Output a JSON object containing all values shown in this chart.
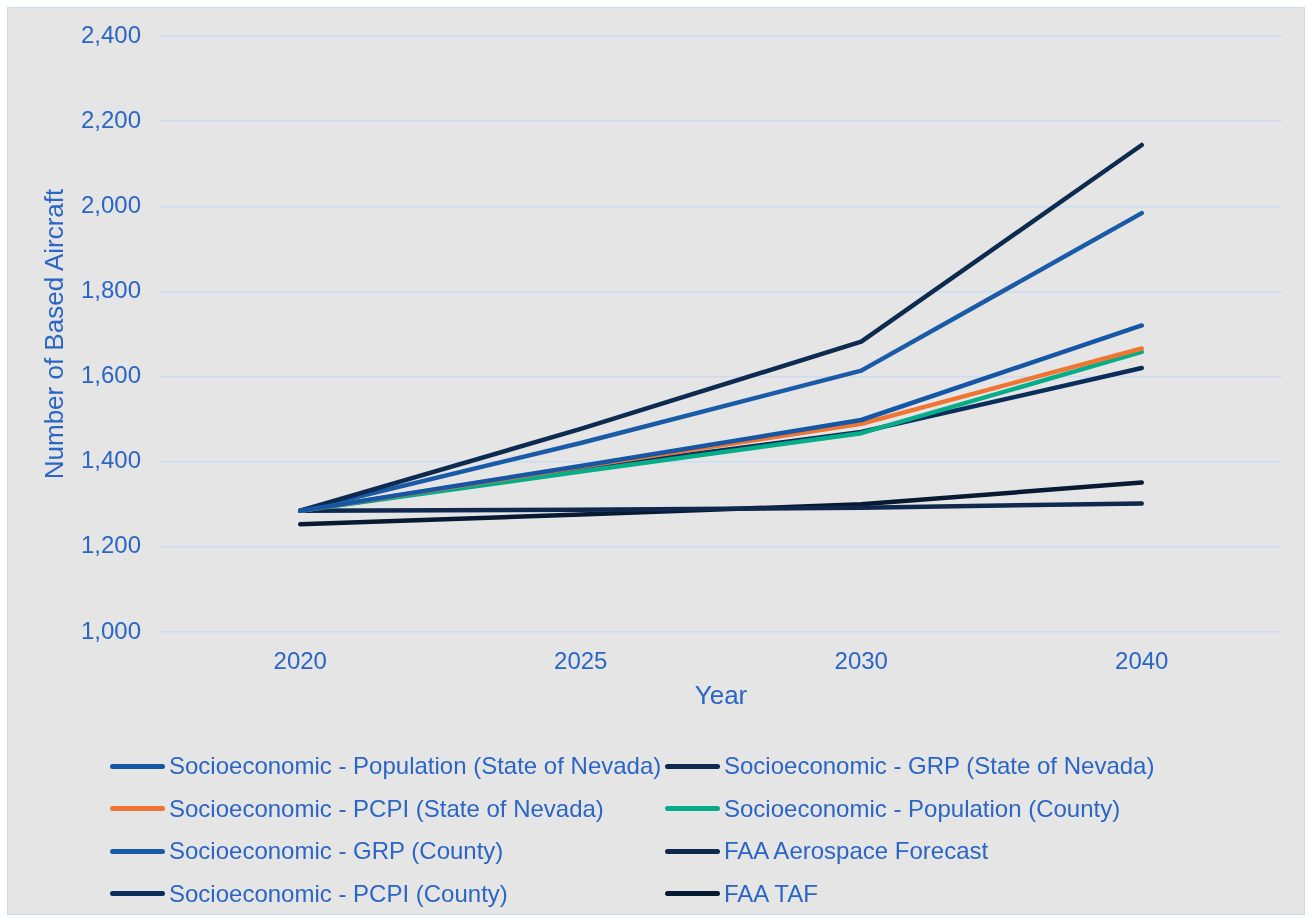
{
  "chart_data": {
    "type": "line",
    "xlabel": "Year",
    "ylabel": "Number of Based Aircraft",
    "categories": [
      "2020",
      "2025",
      "2030",
      "2040"
    ],
    "ylim": [
      1000,
      2400
    ],
    "yticks": [
      {
        "value": 1000,
        "label": "1,000"
      },
      {
        "value": 1200,
        "label": "1,200"
      },
      {
        "value": 1400,
        "label": "1,400"
      },
      {
        "value": 1600,
        "label": "1,600"
      },
      {
        "value": 1800,
        "label": "1,800"
      },
      {
        "value": 2000,
        "label": "2,000"
      },
      {
        "value": 2200,
        "label": "2,200"
      },
      {
        "value": 2400,
        "label": "2,400"
      }
    ],
    "grid": "y",
    "legend": "bottom",
    "marker": "none",
    "line_style": "solid",
    "series": [
      {
        "name": "Socioeconomic - Population (State of Nevada)",
        "color": "#1557a5",
        "values": [
          1285,
          1390,
          1498,
          1720
        ]
      },
      {
        "name": "Socioeconomic - GRP (State of Nevada)",
        "color": "#0d2a50",
        "values": [
          1285,
          1477,
          1682,
          2144
        ]
      },
      {
        "name": "Socioeconomic - PCPI (State of Nevada)",
        "color": "#f07532",
        "values": [
          1285,
          1388,
          1489,
          1666
        ]
      },
      {
        "name": "Socioeconomic - Population (County)",
        "color": "#05ad88",
        "values": [
          1285,
          1377,
          1467,
          1658
        ]
      },
      {
        "name": "Socioeconomic - GRP (County)",
        "color": "#1a5ba8",
        "values": [
          1285,
          1444,
          1614,
          1984
        ]
      },
      {
        "name": "FAA Aerospace Forecast",
        "color": "#10284e",
        "values": [
          1285,
          1287,
          1292,
          1302
        ]
      },
      {
        "name": "Socioeconomic - PCPI (County)",
        "color": "#0b2d5b",
        "values": [
          1285,
          1383,
          1470,
          1620
        ]
      },
      {
        "name": "FAA TAF",
        "color": "#071a32",
        "values": [
          1253,
          1276,
          1300,
          1351
        ]
      }
    ]
  }
}
